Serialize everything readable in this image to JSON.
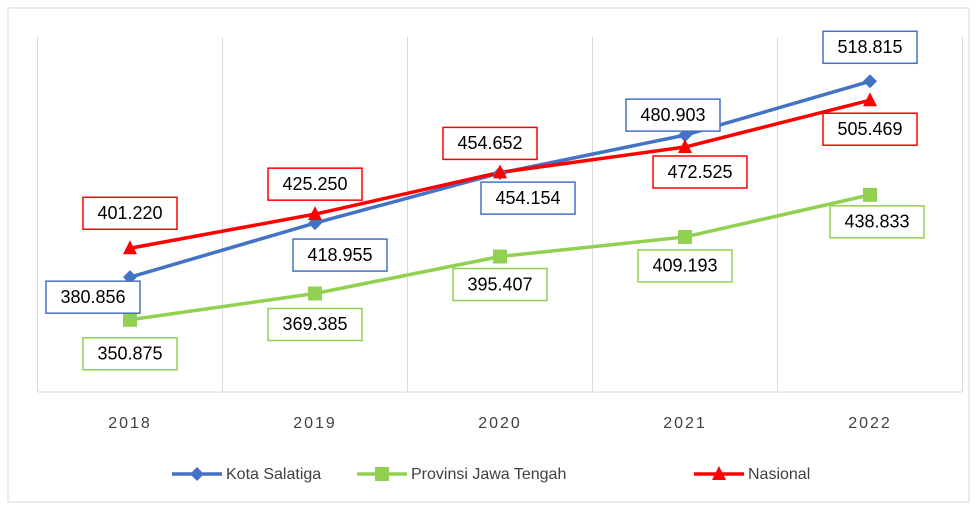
{
  "chart_data": {
    "type": "line",
    "categories": [
      "2018",
      "2019",
      "2020",
      "2021",
      "2022"
    ],
    "series": [
      {
        "name": "Kota Salatiga",
        "color": "#4472c4",
        "marker": "diamond",
        "values": [
          380.856,
          418.955,
          454.154,
          480.903,
          518.815
        ],
        "value_labels": [
          "380.856",
          "418.955",
          "454.154",
          "480.903",
          "518.815"
        ]
      },
      {
        "name": "Provinsi Jawa Tengah",
        "color": "#92d050",
        "marker": "square",
        "values": [
          350.875,
          369.385,
          395.407,
          409.193,
          438.833
        ],
        "value_labels": [
          "350.875",
          "369.385",
          "395.407",
          "409.193",
          "438.833"
        ]
      },
      {
        "name": "Nasional",
        "color": "#ff0000",
        "marker": "triangle",
        "values": [
          401.22,
          425.25,
          454.652,
          472.525,
          505.469
        ],
        "value_labels": [
          "401.220",
          "425.250",
          "454.652",
          "472.525",
          "505.469"
        ]
      }
    ],
    "ylim": [
      300,
      550
    ],
    "grid": true,
    "legend": "bottom"
  }
}
